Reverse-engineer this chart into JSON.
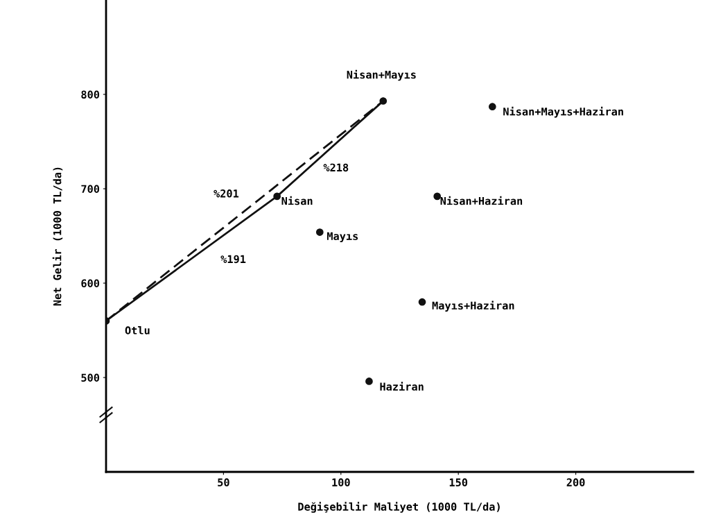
{
  "chart_data": {
    "type": "scatter",
    "xlabel": "Değişebilir Maliyet (1000 TL/da)",
    "ylabel": "Net Gelir (1000 TL/da)",
    "xlim": [
      0,
      250
    ],
    "xticks": [
      50,
      100,
      150,
      200
    ],
    "ylim": [
      400,
      900
    ],
    "yticks": [
      500,
      600,
      700,
      800
    ],
    "grid": false,
    "legend": false,
    "series": [
      {
        "type": "line",
        "color": "#111111",
        "line_style": "solid",
        "marker": "none",
        "x": [
          0,
          72.8,
          118
        ],
        "values": [
          560,
          692,
          793
        ]
      },
      {
        "type": "line",
        "color": "#111111",
        "line_style": "dashed",
        "marker": "none",
        "x": [
          0,
          118
        ],
        "values": [
          560,
          793
        ]
      },
      {
        "color": "#111111",
        "marker": "circle",
        "x": [
          0,
          72.8,
          118,
          91,
          164.5,
          141,
          134.6,
          112
        ],
        "values": [
          560,
          692,
          793,
          654,
          787,
          692,
          580,
          496
        ]
      }
    ],
    "annotations": [
      {
        "text": "Otlu",
        "x": 0,
        "y": 560
      },
      {
        "text": "Nisan",
        "x": 72.8,
        "y": 692
      },
      {
        "text": "Nisan+Mayıs",
        "x": 118,
        "y": 793
      },
      {
        "text": "Mayıs",
        "x": 91,
        "y": 654
      },
      {
        "text": "Nisan+Mayıs+Haziran",
        "x": 164.5,
        "y": 787
      },
      {
        "text": "Nisan+Haziran",
        "x": 141,
        "y": 692
      },
      {
        "text": "Mayıs+Haziran",
        "x": 134.6,
        "y": 580
      },
      {
        "text": "Haziran",
        "x": 112,
        "y": 496
      },
      "%201",
      "%191",
      "%218"
    ]
  }
}
